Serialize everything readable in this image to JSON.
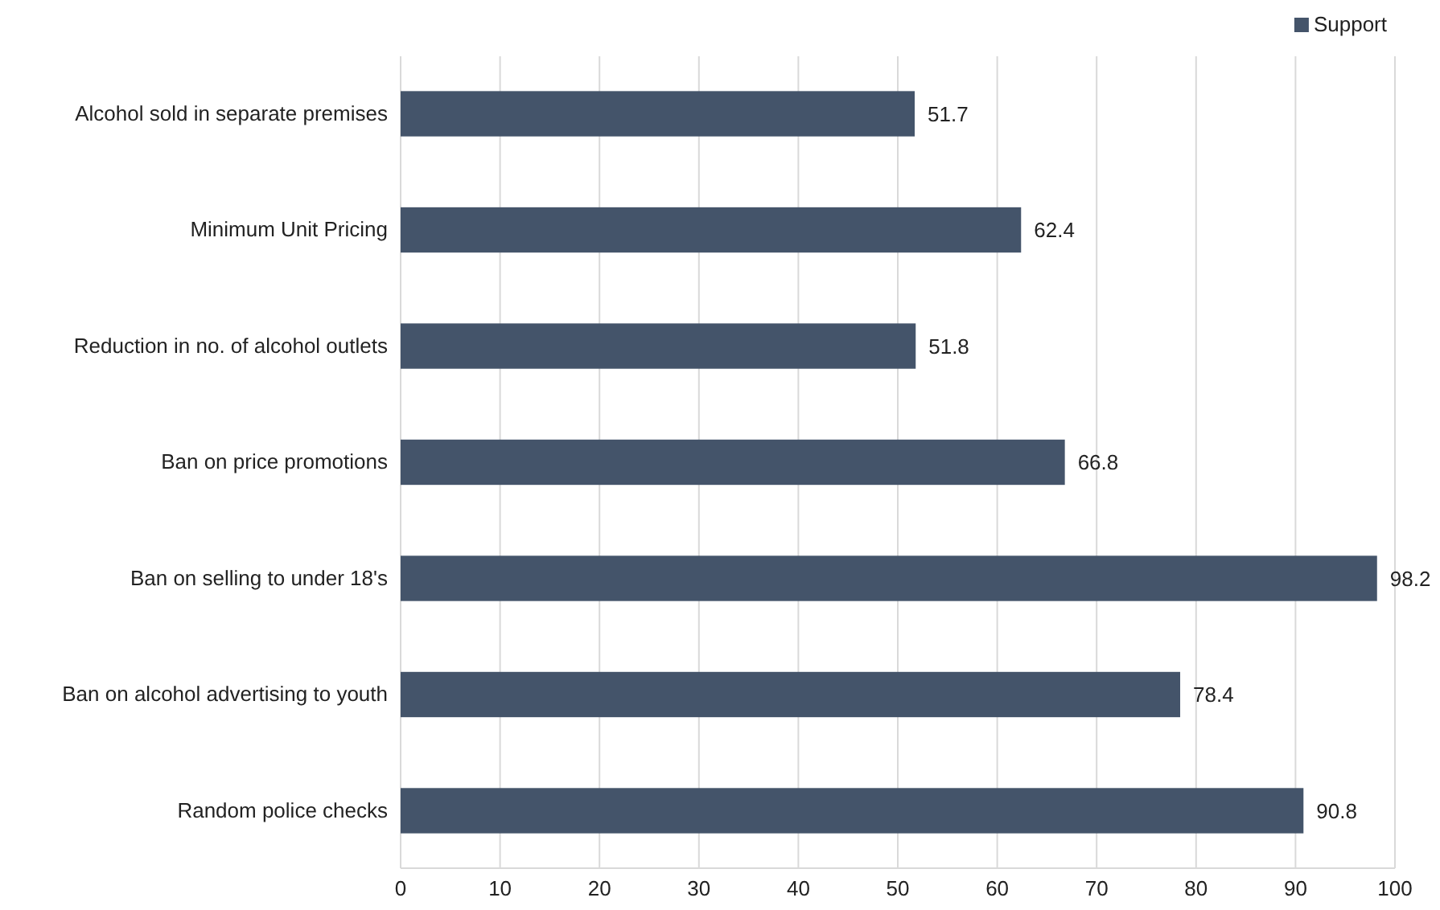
{
  "chart_data": {
    "type": "bar",
    "orientation": "horizontal",
    "categories": [
      "Alcohol sold in separate premises",
      "Minimum Unit Pricing",
      "Reduction in no. of alcohol outlets",
      "Ban on price promotions",
      "Ban on selling to under 18's",
      "Ban on alcohol advertising to youth",
      "Random police checks"
    ],
    "series": [
      {
        "name": "Support",
        "color": "#44546a",
        "values": [
          51.7,
          62.4,
          51.8,
          66.8,
          98.2,
          78.4,
          90.8
        ]
      }
    ],
    "xlim": [
      0,
      100
    ],
    "xticks": [
      0,
      10,
      20,
      30,
      40,
      50,
      60,
      70,
      80,
      90,
      100
    ],
    "grid": "x",
    "legend": "top right",
    "data_labels": true
  }
}
